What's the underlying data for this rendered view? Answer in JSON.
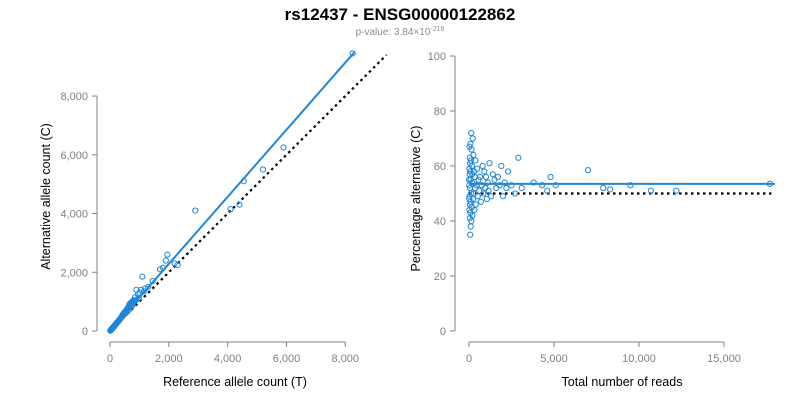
{
  "title": "rs12437 - ENSG00000122862",
  "subtitle": {
    "prefix": "p-value: 3.84×10",
    "exponent": "-216"
  },
  "colors": {
    "points": "#1f86d8",
    "fit_line": "#1f86d8",
    "reference_line": "#000000",
    "axis": "#808080"
  },
  "chart_data": [
    {
      "type": "scatter",
      "xlabel": "Reference allele count (T)",
      "ylabel": "Alternative allele count (C)",
      "xlim": [
        0,
        8500
      ],
      "ylim": [
        0,
        9500
      ],
      "xticks": [
        0,
        2000,
        4000,
        6000,
        8000
      ],
      "xtick_labels": [
        "0",
        "2,000",
        "4,000",
        "6,000",
        "8,000"
      ],
      "yticks": [
        0,
        2000,
        4000,
        6000,
        8000
      ],
      "ytick_labels": [
        "0",
        "2,000",
        "4,000",
        "6,000",
        "8,000"
      ],
      "grid": false,
      "points": [
        [
          8250,
          9450
        ],
        [
          5900,
          6250
        ],
        [
          5200,
          5500
        ],
        [
          4550,
          5100
        ],
        [
          4400,
          4300
        ],
        [
          4100,
          4150
        ],
        [
          2900,
          4100
        ],
        [
          2300,
          2250
        ],
        [
          2200,
          2300
        ],
        [
          1950,
          2600
        ],
        [
          1900,
          2400
        ],
        [
          1800,
          2150
        ],
        [
          1700,
          2100
        ],
        [
          1450,
          1700
        ],
        [
          1300,
          1500
        ],
        [
          1200,
          1450
        ],
        [
          1150,
          1350
        ],
        [
          1100,
          1850
        ],
        [
          1050,
          1400
        ],
        [
          1000,
          1300
        ],
        [
          980,
          1100
        ],
        [
          950,
          1250
        ],
        [
          900,
          1400
        ],
        [
          880,
          1050
        ],
        [
          850,
          1150
        ],
        [
          820,
          1000
        ],
        [
          800,
          1050
        ],
        [
          780,
          950
        ],
        [
          750,
          1000
        ],
        [
          720,
          900
        ],
        [
          700,
          950
        ],
        [
          680,
          850
        ],
        [
          650,
          900
        ],
        [
          620,
          800
        ],
        [
          600,
          780
        ],
        [
          580,
          720
        ],
        [
          550,
          700
        ],
        [
          530,
          680
        ],
        [
          500,
          640
        ],
        [
          480,
          580
        ],
        [
          460,
          600
        ],
        [
          440,
          520
        ],
        [
          420,
          540
        ],
        [
          400,
          480
        ],
        [
          380,
          460
        ],
        [
          360,
          440
        ],
        [
          340,
          400
        ],
        [
          320,
          380
        ],
        [
          300,
          360
        ],
        [
          280,
          330
        ],
        [
          260,
          310
        ],
        [
          240,
          290
        ],
        [
          220,
          260
        ],
        [
          200,
          240
        ],
        [
          180,
          210
        ],
        [
          160,
          190
        ],
        [
          150,
          170
        ],
        [
          140,
          160
        ],
        [
          120,
          140
        ],
        [
          110,
          130
        ],
        [
          100,
          120
        ],
        [
          90,
          100
        ],
        [
          80,
          90
        ],
        [
          70,
          80
        ],
        [
          60,
          70
        ],
        [
          50,
          60
        ],
        [
          40,
          50
        ],
        [
          30,
          35
        ],
        [
          20,
          25
        ],
        [
          10,
          12
        ],
        [
          620,
          700
        ],
        [
          540,
          620
        ],
        [
          470,
          560
        ],
        [
          410,
          500
        ],
        [
          350,
          420
        ],
        [
          290,
          340
        ],
        [
          230,
          280
        ],
        [
          170,
          200
        ],
        [
          130,
          150
        ],
        [
          95,
          110
        ],
        [
          700,
          820
        ],
        [
          760,
          880
        ],
        [
          640,
          720
        ],
        [
          560,
          640
        ],
        [
          520,
          600
        ]
      ],
      "fit_line": [
        [
          0,
          0
        ],
        [
          8300,
          9480
        ]
      ],
      "reference_line": [
        [
          0,
          0
        ],
        [
          9400,
          9400
        ]
      ]
    },
    {
      "type": "scatter",
      "xlabel": "Total number of reads",
      "ylabel": "Percentage alternative (C)",
      "xlim": [
        0,
        18000
      ],
      "ylim": [
        0,
        100
      ],
      "xticks": [
        0,
        5000,
        10000,
        15000
      ],
      "xtick_labels": [
        "0",
        "5,000",
        "10,000",
        "15,000"
      ],
      "yticks": [
        0,
        20,
        40,
        60,
        80,
        100
      ],
      "ytick_labels": [
        "0",
        "20",
        "40",
        "60",
        "80",
        "100"
      ],
      "grid": false,
      "points": [
        [
          17700,
          53.5
        ],
        [
          12200,
          51
        ],
        [
          10700,
          51
        ],
        [
          9500,
          53
        ],
        [
          8300,
          51.5
        ],
        [
          7900,
          52
        ],
        [
          7000,
          58.5
        ],
        [
          5100,
          53
        ],
        [
          4800,
          56
        ],
        [
          4600,
          51
        ],
        [
          4300,
          53
        ],
        [
          3800,
          54
        ],
        [
          3100,
          52
        ],
        [
          2900,
          63
        ],
        [
          2700,
          50
        ],
        [
          2500,
          53
        ],
        [
          2300,
          58
        ],
        [
          2200,
          52
        ],
        [
          2100,
          54
        ],
        [
          2000,
          49
        ],
        [
          1900,
          60
        ],
        [
          1800,
          53
        ],
        [
          1700,
          56
        ],
        [
          1600,
          52
        ],
        [
          1500,
          55
        ],
        [
          1400,
          57
        ],
        [
          1300,
          49
        ],
        [
          1200,
          61
        ],
        [
          1150,
          51
        ],
        [
          1100,
          54
        ],
        [
          1050,
          48
        ],
        [
          1000,
          56
        ],
        [
          950,
          52
        ],
        [
          900,
          58
        ],
        [
          850,
          50
        ],
        [
          800,
          60
        ],
        [
          750,
          53
        ],
        [
          700,
          47
        ],
        [
          650,
          56
        ],
        [
          600,
          51
        ],
        [
          560,
          55
        ],
        [
          520,
          49
        ],
        [
          480,
          59
        ],
        [
          440,
          53
        ],
        [
          400,
          46
        ],
        [
          380,
          62
        ],
        [
          360,
          52
        ],
        [
          340,
          56
        ],
        [
          320,
          44
        ],
        [
          300,
          58
        ],
        [
          280,
          50
        ],
        [
          260,
          64
        ],
        [
          240,
          48
        ],
        [
          220,
          70
        ],
        [
          200,
          42
        ],
        [
          190,
          57
        ],
        [
          180,
          54
        ],
        [
          170,
          60
        ],
        [
          160,
          45
        ],
        [
          150,
          66
        ],
        [
          140,
          40
        ],
        [
          130,
          72
        ],
        [
          120,
          50
        ],
        [
          110,
          62
        ],
        [
          100,
          38
        ],
        [
          95,
          55
        ],
        [
          90,
          47
        ],
        [
          85,
          68
        ],
        [
          80,
          43
        ],
        [
          75,
          58
        ],
        [
          70,
          35
        ],
        [
          65,
          61
        ],
        [
          60,
          52
        ],
        [
          55,
          46
        ],
        [
          50,
          63
        ],
        [
          45,
          41
        ],
        [
          40,
          57
        ],
        [
          35,
          49
        ],
        [
          30,
          67
        ],
        [
          25,
          44
        ],
        [
          20,
          59
        ],
        [
          15,
          53
        ],
        [
          10,
          48
        ],
        [
          5,
          55
        ]
      ],
      "fit_line": [
        [
          0,
          53.5
        ],
        [
          18000,
          53.5
        ]
      ],
      "reference_line": [
        [
          0,
          50
        ],
        [
          18000,
          50
        ]
      ]
    }
  ]
}
